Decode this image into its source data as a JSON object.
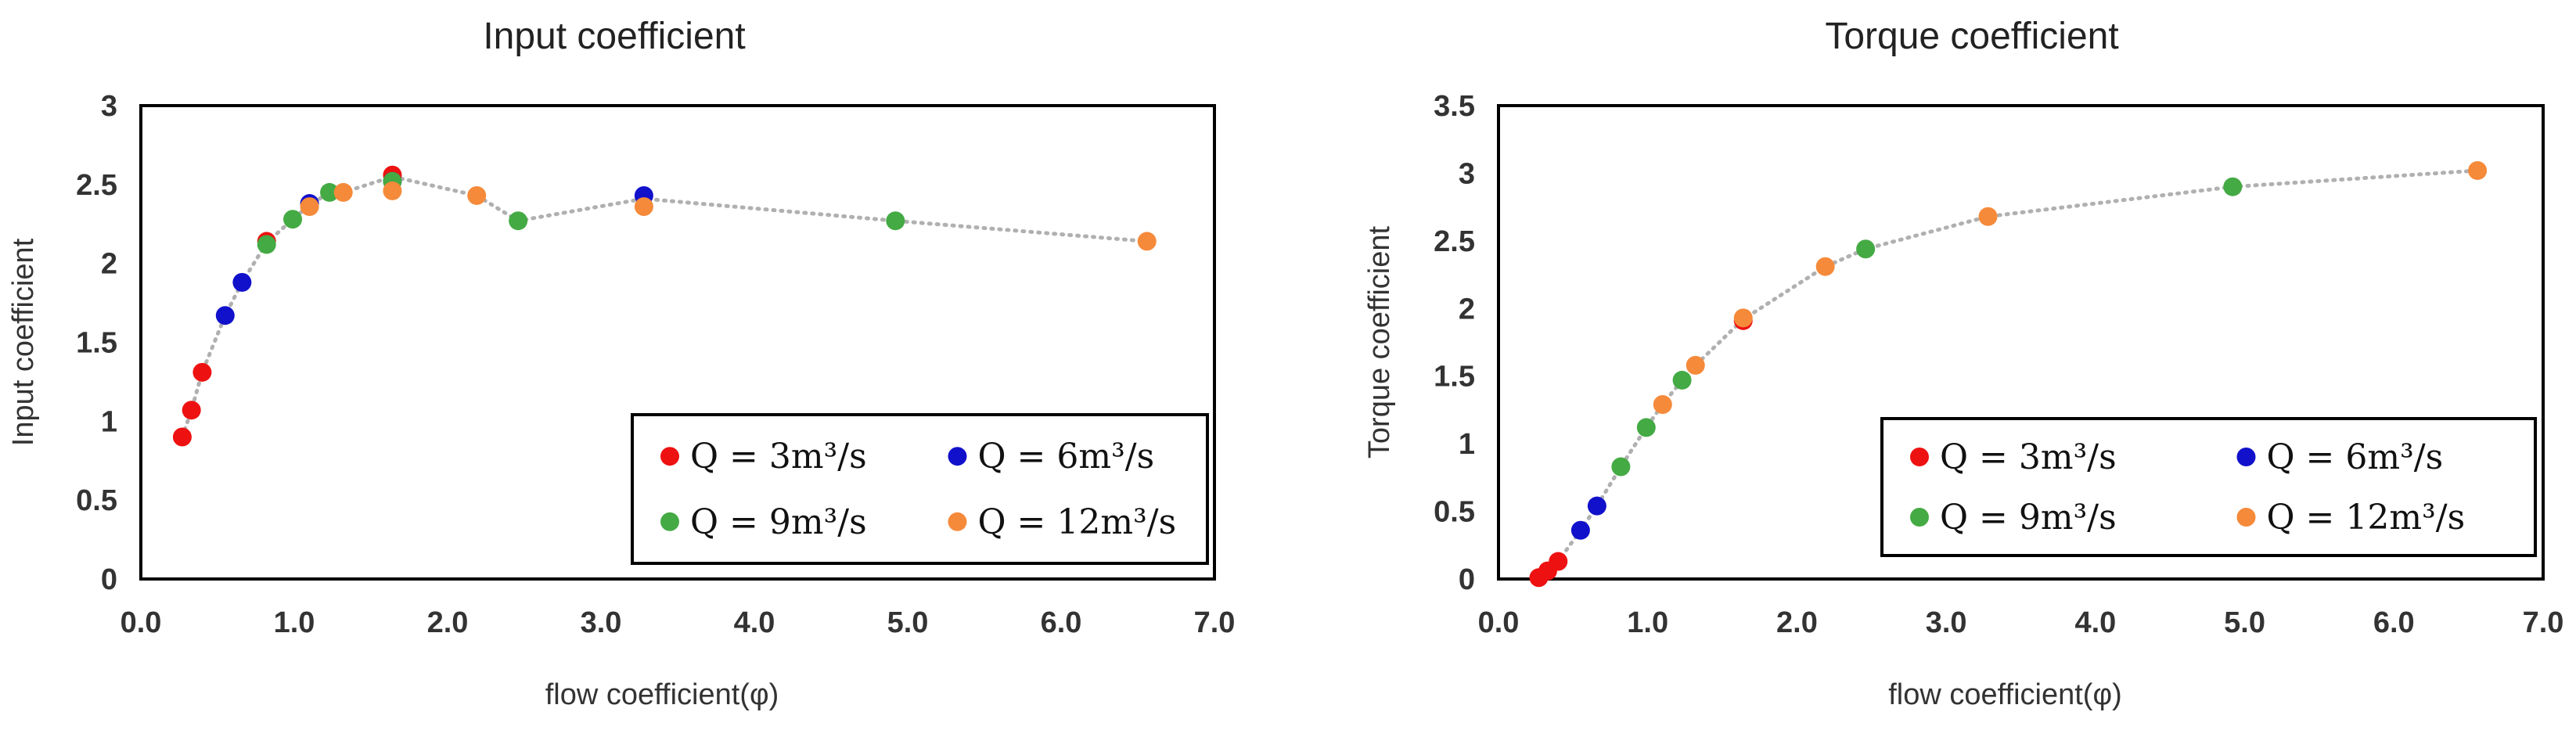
{
  "colors": {
    "q3": "#ee1111",
    "q6": "#1111cc",
    "q9": "#44aa44",
    "q12": "#f58a3a",
    "trend": "#b0b0b0",
    "frame": "#000000"
  },
  "chart_data": [
    {
      "type": "scatter",
      "title": "Input coefficient",
      "xlabel": "flow coefficient(φ)",
      "ylabel": "Input coefficient",
      "xlim": [
        0,
        7
      ],
      "ylim": [
        0,
        3
      ],
      "xticks": [
        "0.0",
        "1.0",
        "2.0",
        "3.0",
        "4.0",
        "5.0",
        "6.0",
        "7.0"
      ],
      "yticks": [
        "0",
        "0.5",
        "1",
        "1.5",
        "2",
        "2.5",
        "3"
      ],
      "legend_position": "bottom-right",
      "series": [
        {
          "name": "Q = 3m³/s",
          "color_key": "q3",
          "x": [
            0.27,
            0.33,
            0.4,
            0.82,
            1.64
          ],
          "y": [
            0.9,
            1.07,
            1.31,
            2.14,
            2.56
          ]
        },
        {
          "name": "Q = 6m³/s",
          "color_key": "q6",
          "x": [
            0.55,
            0.66,
            1.1,
            1.64,
            3.28
          ],
          "y": [
            1.67,
            1.88,
            2.38,
            2.52,
            2.43
          ]
        },
        {
          "name": "Q = 9m³/s",
          "color_key": "q9",
          "x": [
            0.82,
            0.99,
            1.23,
            1.64,
            2.46,
            4.92
          ],
          "y": [
            2.12,
            2.28,
            2.45,
            2.52,
            2.27,
            2.27
          ]
        },
        {
          "name": "Q = 12m³/s",
          "color_key": "q12",
          "x": [
            1.1,
            1.32,
            1.64,
            2.19,
            3.28,
            6.56
          ],
          "y": [
            2.36,
            2.45,
            2.46,
            2.43,
            2.36,
            2.14
          ]
        }
      ],
      "trend": {
        "x": [
          0.27,
          0.33,
          0.4,
          0.55,
          0.66,
          0.82,
          0.99,
          1.1,
          1.23,
          1.32,
          1.64,
          2.19,
          2.46,
          3.28,
          4.92,
          6.56
        ],
        "y": [
          0.9,
          1.07,
          1.31,
          1.67,
          1.88,
          2.13,
          2.28,
          2.37,
          2.45,
          2.45,
          2.55,
          2.43,
          2.27,
          2.41,
          2.27,
          2.14
        ]
      }
    },
    {
      "type": "scatter",
      "title": "Torque coefficient",
      "xlabel": "flow coefficient(φ)",
      "ylabel": "Torque coefficient",
      "xlim": [
        0,
        7
      ],
      "ylim": [
        0,
        3.5
      ],
      "xticks": [
        "0.0",
        "1.0",
        "2.0",
        "3.0",
        "4.0",
        "5.0",
        "6.0",
        "7.0"
      ],
      "yticks": [
        "0",
        "0.5",
        "1",
        "1.5",
        "2",
        "2.5",
        "3",
        "3.5"
      ],
      "legend_position": "bottom-right",
      "series": [
        {
          "name": "Q = 3m³/s",
          "color_key": "q3",
          "x": [
            0.27,
            0.33,
            0.4,
            1.64
          ],
          "y": [
            0.01,
            0.06,
            0.13,
            1.91
          ]
        },
        {
          "name": "Q = 6m³/s",
          "color_key": "q6",
          "x": [
            0.55,
            0.66
          ],
          "y": [
            0.36,
            0.54
          ]
        },
        {
          "name": "Q = 9m³/s",
          "color_key": "q9",
          "x": [
            0.82,
            0.99,
            1.23,
            2.46,
            4.92
          ],
          "y": [
            0.83,
            1.12,
            1.47,
            2.44,
            2.9
          ]
        },
        {
          "name": "Q = 12m³/s",
          "color_key": "q12",
          "x": [
            1.1,
            1.32,
            1.64,
            2.19,
            3.28,
            6.56
          ],
          "y": [
            1.29,
            1.58,
            1.93,
            2.31,
            2.68,
            3.02
          ]
        }
      ],
      "trend": {
        "x": [
          0.27,
          0.33,
          0.4,
          0.55,
          0.66,
          0.82,
          0.99,
          1.1,
          1.23,
          1.32,
          1.64,
          2.19,
          2.46,
          3.28,
          4.92,
          6.56
        ],
        "y": [
          0.01,
          0.06,
          0.13,
          0.36,
          0.54,
          0.83,
          1.12,
          1.29,
          1.47,
          1.58,
          1.92,
          2.31,
          2.44,
          2.68,
          2.9,
          3.02
        ]
      }
    }
  ]
}
